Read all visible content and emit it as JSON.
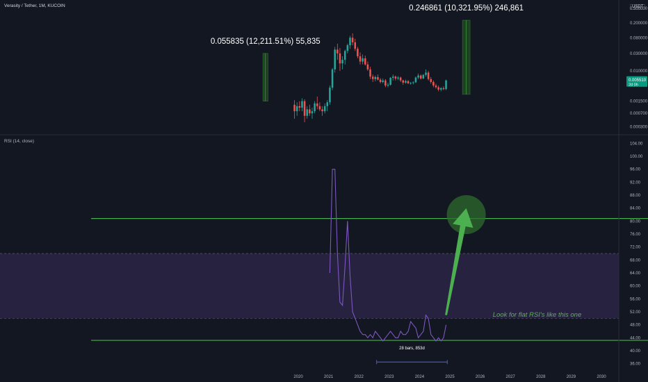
{
  "header": {
    "symbol_title": "Verasity / Tether, 1M, KUCOIN",
    "currency": "USDT",
    "indicator_title": "RSI (14, close)"
  },
  "colors": {
    "background": "#131722",
    "up_candle": "#26a69a",
    "down_candle": "#ef5350",
    "rsi_line": "#7e57c2",
    "rsi_band": "#2a2545",
    "level_line": "#4caf50",
    "arrow": "#4caf50",
    "annotation_text": "#5fae5f",
    "price_badge": "#089981",
    "measure_range": "#3f51b5"
  },
  "price_badge": {
    "price": "0.005510",
    "countdown": "2d 0h"
  },
  "annotations": {
    "measure_1": "0.055835 (12,211.51%) 55,835",
    "measure_2": "0.246861 (10,321.95%) 246,861",
    "note": "Look for flat RSI's like this one",
    "bars_range": "28 bars, 853d"
  },
  "chart_data": [
    {
      "type": "candlestick",
      "title": "Verasity / Tether, 1M, KUCOIN",
      "scale": "log",
      "ylim": [
        0.0002,
        0.6
      ],
      "y_ticks": [
        "0.500000",
        "0.200000",
        "0.080000",
        "0.030000",
        "0.010000",
        "0.004000",
        "0.001500",
        "0.000700",
        "0.000300"
      ],
      "y_tick_values": [
        0.5,
        0.2,
        0.08,
        0.03,
        0.01,
        0.004,
        0.0015,
        0.0007,
        0.0003
      ],
      "last_price": 0.00551,
      "candles": [
        {
          "date": "2019-11",
          "o": 0.0012,
          "h": 0.0016,
          "l": 0.0005,
          "c": 0.0008
        },
        {
          "date": "2019-12",
          "o": 0.0008,
          "h": 0.0014,
          "l": 0.0006,
          "c": 0.0011
        },
        {
          "date": "2020-01",
          "o": 0.0011,
          "h": 0.0015,
          "l": 0.0008,
          "c": 0.001
        },
        {
          "date": "2020-02",
          "o": 0.001,
          "h": 0.0018,
          "l": 0.0008,
          "c": 0.0015
        },
        {
          "date": "2020-03",
          "o": 0.0015,
          "h": 0.0017,
          "l": 0.0004,
          "c": 0.0006
        },
        {
          "date": "2020-04",
          "o": 0.0006,
          "h": 0.0011,
          "l": 0.0005,
          "c": 0.0009
        },
        {
          "date": "2020-05",
          "o": 0.0009,
          "h": 0.0012,
          "l": 0.0006,
          "c": 0.0007
        },
        {
          "date": "2020-06",
          "o": 0.0007,
          "h": 0.001,
          "l": 0.0005,
          "c": 0.0008
        },
        {
          "date": "2020-07",
          "o": 0.0008,
          "h": 0.0015,
          "l": 0.0007,
          "c": 0.0013
        },
        {
          "date": "2020-08",
          "o": 0.0013,
          "h": 0.002,
          "l": 0.0009,
          "c": 0.0011
        },
        {
          "date": "2020-09",
          "o": 0.0011,
          "h": 0.0014,
          "l": 0.0008,
          "c": 0.0009
        },
        {
          "date": "2020-10",
          "o": 0.0009,
          "h": 0.0011,
          "l": 0.0006,
          "c": 0.0008
        },
        {
          "date": "2020-11",
          "o": 0.0008,
          "h": 0.0013,
          "l": 0.0007,
          "c": 0.0011
        },
        {
          "date": "2020-12",
          "o": 0.0011,
          "h": 0.0016,
          "l": 0.0008,
          "c": 0.0014
        },
        {
          "date": "2021-01",
          "o": 0.0014,
          "h": 0.004,
          "l": 0.0012,
          "c": 0.0035
        },
        {
          "date": "2021-02",
          "o": 0.0035,
          "h": 0.012,
          "l": 0.003,
          "c": 0.011
        },
        {
          "date": "2021-03",
          "o": 0.011,
          "h": 0.045,
          "l": 0.009,
          "c": 0.038
        },
        {
          "date": "2021-04",
          "o": 0.038,
          "h": 0.055,
          "l": 0.02,
          "c": 0.03
        },
        {
          "date": "2021-05",
          "o": 0.03,
          "h": 0.042,
          "l": 0.01,
          "c": 0.016
        },
        {
          "date": "2021-06",
          "o": 0.016,
          "h": 0.025,
          "l": 0.011,
          "c": 0.02
        },
        {
          "date": "2021-07",
          "o": 0.02,
          "h": 0.038,
          "l": 0.015,
          "c": 0.035
        },
        {
          "date": "2021-08",
          "o": 0.035,
          "h": 0.055,
          "l": 0.03,
          "c": 0.05
        },
        {
          "date": "2021-09",
          "o": 0.05,
          "h": 0.09,
          "l": 0.04,
          "c": 0.08
        },
        {
          "date": "2021-10",
          "o": 0.08,
          "h": 0.105,
          "l": 0.05,
          "c": 0.06
        },
        {
          "date": "2021-11",
          "o": 0.06,
          "h": 0.075,
          "l": 0.035,
          "c": 0.04
        },
        {
          "date": "2021-12",
          "o": 0.04,
          "h": 0.045,
          "l": 0.022,
          "c": 0.025
        },
        {
          "date": "2022-01",
          "o": 0.025,
          "h": 0.032,
          "l": 0.015,
          "c": 0.018
        },
        {
          "date": "2022-02",
          "o": 0.018,
          "h": 0.028,
          "l": 0.015,
          "c": 0.022
        },
        {
          "date": "2022-03",
          "o": 0.022,
          "h": 0.026,
          "l": 0.014,
          "c": 0.015
        },
        {
          "date": "2022-04",
          "o": 0.015,
          "h": 0.018,
          "l": 0.01,
          "c": 0.011
        },
        {
          "date": "2022-05",
          "o": 0.011,
          "h": 0.013,
          "l": 0.006,
          "c": 0.007
        },
        {
          "date": "2022-06",
          "o": 0.007,
          "h": 0.008,
          "l": 0.005,
          "c": 0.006
        },
        {
          "date": "2022-07",
          "o": 0.006,
          "h": 0.0075,
          "l": 0.0052,
          "c": 0.0068
        },
        {
          "date": "2022-08",
          "o": 0.0068,
          "h": 0.008,
          "l": 0.0055,
          "c": 0.0058
        },
        {
          "date": "2022-09",
          "o": 0.0058,
          "h": 0.0064,
          "l": 0.0046,
          "c": 0.005
        },
        {
          "date": "2022-10",
          "o": 0.005,
          "h": 0.0062,
          "l": 0.0046,
          "c": 0.0055
        },
        {
          "date": "2022-11",
          "o": 0.0055,
          "h": 0.006,
          "l": 0.0036,
          "c": 0.004
        },
        {
          "date": "2022-12",
          "o": 0.004,
          "h": 0.0048,
          "l": 0.0036,
          "c": 0.0042
        },
        {
          "date": "2023-01",
          "o": 0.0042,
          "h": 0.0068,
          "l": 0.004,
          "c": 0.0065
        },
        {
          "date": "2023-02",
          "o": 0.0065,
          "h": 0.008,
          "l": 0.0055,
          "c": 0.007
        },
        {
          "date": "2023-03",
          "o": 0.007,
          "h": 0.0075,
          "l": 0.0055,
          "c": 0.0062
        },
        {
          "date": "2023-04",
          "o": 0.0062,
          "h": 0.0072,
          "l": 0.0056,
          "c": 0.0066
        },
        {
          "date": "2023-05",
          "o": 0.0066,
          "h": 0.007,
          "l": 0.005,
          "c": 0.0055
        },
        {
          "date": "2023-06",
          "o": 0.0055,
          "h": 0.0058,
          "l": 0.0042,
          "c": 0.0048
        },
        {
          "date": "2023-07",
          "o": 0.0048,
          "h": 0.0058,
          "l": 0.0045,
          "c": 0.0053
        },
        {
          "date": "2023-08",
          "o": 0.0053,
          "h": 0.0056,
          "l": 0.0044,
          "c": 0.0046
        },
        {
          "date": "2023-09",
          "o": 0.0046,
          "h": 0.005,
          "l": 0.0042,
          "c": 0.0047
        },
        {
          "date": "2023-10",
          "o": 0.0047,
          "h": 0.0052,
          "l": 0.0043,
          "c": 0.0049
        },
        {
          "date": "2023-11",
          "o": 0.0049,
          "h": 0.007,
          "l": 0.0047,
          "c": 0.0066
        },
        {
          "date": "2023-12",
          "o": 0.0066,
          "h": 0.0085,
          "l": 0.006,
          "c": 0.0075
        },
        {
          "date": "2024-01",
          "o": 0.0075,
          "h": 0.008,
          "l": 0.0058,
          "c": 0.0062
        },
        {
          "date": "2024-02",
          "o": 0.0062,
          "h": 0.0082,
          "l": 0.006,
          "c": 0.0078
        },
        {
          "date": "2024-03",
          "o": 0.0078,
          "h": 0.011,
          "l": 0.007,
          "c": 0.009
        },
        {
          "date": "2024-04",
          "o": 0.009,
          "h": 0.01,
          "l": 0.0055,
          "c": 0.006
        },
        {
          "date": "2024-05",
          "o": 0.006,
          "h": 0.0068,
          "l": 0.0045,
          "c": 0.005
        },
        {
          "date": "2024-06",
          "o": 0.005,
          "h": 0.0055,
          "l": 0.0036,
          "c": 0.004
        },
        {
          "date": "2024-07",
          "o": 0.004,
          "h": 0.0045,
          "l": 0.0033,
          "c": 0.0036
        },
        {
          "date": "2024-08",
          "o": 0.0036,
          "h": 0.004,
          "l": 0.0028,
          "c": 0.0031
        },
        {
          "date": "2024-09",
          "o": 0.0031,
          "h": 0.0036,
          "l": 0.0028,
          "c": 0.0034
        },
        {
          "date": "2024-10",
          "o": 0.0034,
          "h": 0.0038,
          "l": 0.003,
          "c": 0.0032
        },
        {
          "date": "2024-11",
          "o": 0.0032,
          "h": 0.0058,
          "l": 0.003,
          "c": 0.00551
        }
      ],
      "measures": [
        {
          "label": "0.055835 (12,211.51%) 55,835",
          "date_start": "2018-11",
          "date_end": "2019-01",
          "low": 0.0015,
          "high": 0.03
        },
        {
          "label": "0.246861 (10,321.95%) 246,861",
          "date_start": "2025-06",
          "date_end": "2025-09",
          "low": 0.0023,
          "high": 0.24
        }
      ]
    },
    {
      "type": "line",
      "title": "RSI (14, close)",
      "ylim": [
        34,
        106
      ],
      "y_ticks": [
        "104.00",
        "100.00",
        "96.00",
        "92.00",
        "88.00",
        "84.00",
        "80.00",
        "76.00",
        "72.00",
        "68.00",
        "64.00",
        "60.00",
        "56.00",
        "52.00",
        "48.00",
        "44.00",
        "40.00",
        "36.00"
      ],
      "y_tick_values": [
        104,
        100,
        96,
        92,
        88,
        84,
        80,
        76,
        72,
        68,
        64,
        60,
        56,
        52,
        48,
        44,
        40,
        36
      ],
      "x_ticks": [
        "2020",
        "2021",
        "2022",
        "2023",
        "2024",
        "2025",
        "2026",
        "2027",
        "2028",
        "2029",
        "2030"
      ],
      "x_tick_values": [
        "2020-01",
        "2021-01",
        "2022-01",
        "2023-01",
        "2024-01",
        "2025-01",
        "2026-01",
        "2027-01",
        "2028-01",
        "2029-01",
        "2030-01"
      ],
      "band": [
        50,
        70
      ],
      "levels": [
        {
          "value": 80.8,
          "date_start": "2013-03",
          "date_end": "2035-11"
        },
        {
          "value": 43.2,
          "date_start": "2013-03",
          "date_end": "2035-11"
        }
      ],
      "series": [
        {
          "x": [
            "2021-01",
            "2021-02",
            "2021-03",
            "2021-04",
            "2021-05",
            "2021-06",
            "2021-07",
            "2021-08",
            "2021-09",
            "2021-10",
            "2021-11",
            "2021-12",
            "2022-01",
            "2022-02",
            "2022-03",
            "2022-04",
            "2022-05",
            "2022-06",
            "2022-07",
            "2022-08",
            "2022-09",
            "2022-10",
            "2022-11",
            "2022-12",
            "2023-01",
            "2023-02",
            "2023-03",
            "2023-04",
            "2023-05",
            "2023-06",
            "2023-07",
            "2023-08",
            "2023-09",
            "2023-10",
            "2023-11",
            "2023-12",
            "2024-01",
            "2024-02",
            "2024-03",
            "2024-04",
            "2024-05",
            "2024-06",
            "2024-07",
            "2024-08",
            "2024-09",
            "2024-10",
            "2024-11"
          ],
          "values": [
            64,
            96,
            96,
            70,
            55,
            54,
            66,
            80,
            63,
            52,
            50,
            48,
            46,
            45,
            45,
            44,
            45,
            44,
            46,
            45,
            44,
            43,
            44,
            45,
            46,
            45,
            44,
            44,
            46,
            45,
            45,
            46,
            49,
            48,
            47,
            44,
            45,
            46,
            51,
            50,
            45,
            44,
            43,
            44,
            43,
            44,
            48
          ]
        }
      ],
      "arrow": {
        "from_date": "2024-11",
        "from_value": 51,
        "to_date": "2025-07",
        "to_value": 84
      },
      "target_circle": {
        "date": "2025-07",
        "value": 82
      },
      "bars_range": {
        "label": "28 bars, 853d",
        "date_start": "2022-08",
        "date_end": "2024-12"
      }
    }
  ]
}
